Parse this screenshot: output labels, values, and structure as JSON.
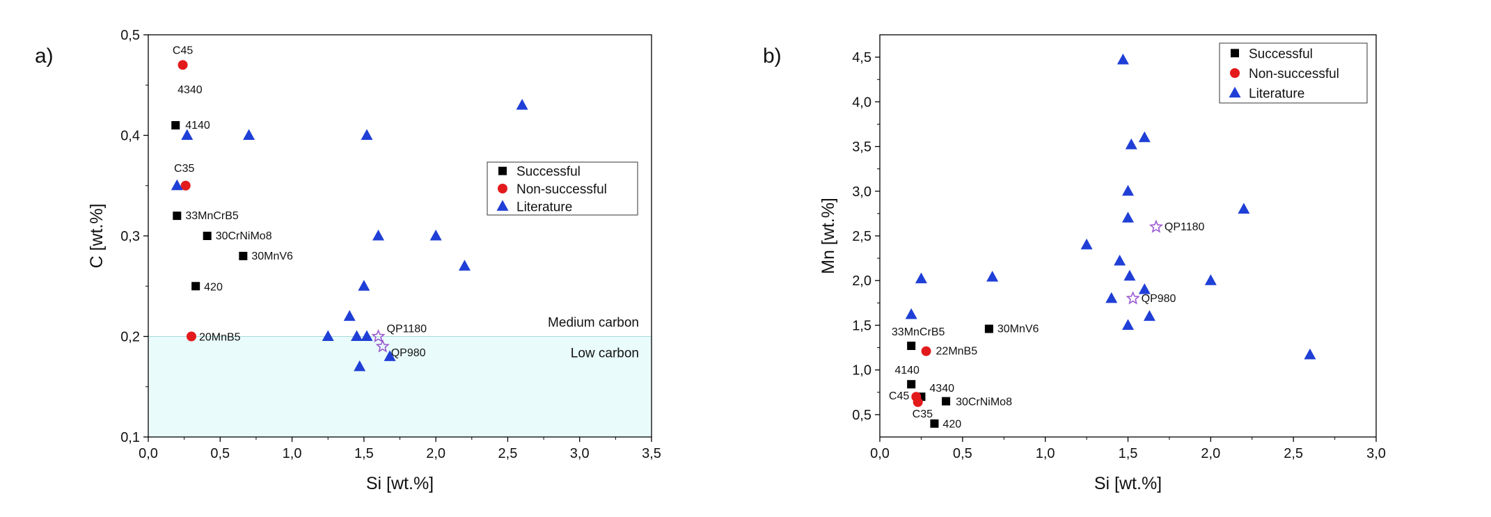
{
  "figure": {
    "legend": {
      "successful": "Successful",
      "non_successful": "Non-successful",
      "literature": "Literature"
    },
    "colors": {
      "successful": "#000000",
      "non_successful": "#e31a1c",
      "literature": "#1f3fd6",
      "qp": "#9b59d0",
      "low_carbon_region": "#e9fbfb"
    }
  },
  "chart_data": [
    {
      "type": "scatter",
      "panel_label": "a)",
      "xlabel": "Si [wt.%]",
      "ylabel": "C [wt.%]",
      "xlim": [
        0.0,
        3.5
      ],
      "ylim": [
        0.1,
        0.5
      ],
      "xticks": [
        0.0,
        0.5,
        1.0,
        1.5,
        2.0,
        2.5,
        3.0,
        3.5
      ],
      "xtick_labels": [
        "0,0",
        "0,5",
        "1,0",
        "1,5",
        "2,0",
        "2,5",
        "3,0",
        "3,5"
      ],
      "yticks": [
        0.1,
        0.2,
        0.3,
        0.4,
        0.5
      ],
      "ytick_labels": [
        "0,1",
        "0,2",
        "0,3",
        "0,4",
        "0,5"
      ],
      "legend_position": "center-right",
      "region": {
        "name": "Low carbon",
        "y_from": 0.1,
        "y_to": 0.2,
        "label_low": "Low carbon",
        "label_high": "Medium carbon"
      },
      "series": [
        {
          "name": "Successful",
          "marker": "square",
          "points": [
            {
              "x": 0.19,
              "y": 0.41,
              "label": "4140"
            },
            {
              "x": 0.2,
              "y": 0.32,
              "label": "33MnCrB5"
            },
            {
              "x": 0.41,
              "y": 0.3,
              "label": "30CrNiMo8"
            },
            {
              "x": 0.66,
              "y": 0.28,
              "label": "30MnV6"
            },
            {
              "x": 0.33,
              "y": 0.25,
              "label": "420"
            }
          ]
        },
        {
          "name": "Non-successful",
          "marker": "circle",
          "points": [
            {
              "x": 0.24,
              "y": 0.47,
              "label": "C45"
            },
            {
              "x": 0.26,
              "y": 0.35,
              "label": "C35"
            },
            {
              "x": 0.3,
              "y": 0.2,
              "label": "20MnB5"
            }
          ]
        },
        {
          "name": "Literature",
          "marker": "triangle",
          "points": [
            {
              "x": 0.27,
              "y": 0.4
            },
            {
              "x": 0.2,
              "y": 0.35
            },
            {
              "x": 0.7,
              "y": 0.4
            },
            {
              "x": 1.52,
              "y": 0.4
            },
            {
              "x": 2.6,
              "y": 0.43
            },
            {
              "x": 1.6,
              "y": 0.3
            },
            {
              "x": 2.0,
              "y": 0.3
            },
            {
              "x": 2.2,
              "y": 0.27
            },
            {
              "x": 1.5,
              "y": 0.25
            },
            {
              "x": 1.4,
              "y": 0.22
            },
            {
              "x": 1.25,
              "y": 0.2
            },
            {
              "x": 1.45,
              "y": 0.2
            },
            {
              "x": 1.52,
              "y": 0.2
            },
            {
              "x": 1.47,
              "y": 0.17
            },
            {
              "x": 1.68,
              "y": 0.18
            }
          ]
        },
        {
          "name": "QP",
          "marker": "star",
          "points": [
            {
              "x": 1.6,
              "y": 0.2,
              "label": "QP1180"
            },
            {
              "x": 1.63,
              "y": 0.19,
              "label": "QP980"
            }
          ]
        }
      ],
      "annotations": [
        "4340"
      ]
    },
    {
      "type": "scatter",
      "panel_label": "b)",
      "xlabel": "Si [wt.%]",
      "ylabel": "Mn [wt.%]",
      "xlim": [
        0.0,
        3.0
      ],
      "ylim": [
        0.25,
        4.75
      ],
      "xticks": [
        0.0,
        0.5,
        1.0,
        1.5,
        2.0,
        2.5,
        3.0
      ],
      "xtick_labels": [
        "0,0",
        "0,5",
        "1,0",
        "1,5",
        "2,0",
        "2,5",
        "3,0"
      ],
      "yticks": [
        0.5,
        1.0,
        1.5,
        2.0,
        2.5,
        3.0,
        3.5,
        4.0,
        4.5
      ],
      "ytick_labels": [
        "0,5",
        "1,0",
        "1,5",
        "2,0",
        "2,5",
        "3,0",
        "3,5",
        "4,0",
        "4,5"
      ],
      "legend_position": "top-right",
      "series": [
        {
          "name": "Successful",
          "marker": "square",
          "points": [
            {
              "x": 0.19,
              "y": 1.27,
              "label": "33MnCrB5"
            },
            {
              "x": 0.66,
              "y": 1.46,
              "label": "30MnV6"
            },
            {
              "x": 0.19,
              "y": 0.84,
              "label": "4140"
            },
            {
              "x": 0.25,
              "y": 0.7,
              "label": "4340"
            },
            {
              "x": 0.4,
              "y": 0.65,
              "label": "30CrNiMo8"
            },
            {
              "x": 0.33,
              "y": 0.4,
              "label": "420"
            }
          ]
        },
        {
          "name": "Non-successful",
          "marker": "circle",
          "points": [
            {
              "x": 0.28,
              "y": 1.21,
              "label": "22MnB5"
            },
            {
              "x": 0.22,
              "y": 0.7,
              "label": "C45"
            },
            {
              "x": 0.23,
              "y": 0.64,
              "label": "C35"
            }
          ]
        },
        {
          "name": "Literature",
          "marker": "triangle",
          "points": [
            {
              "x": 1.47,
              "y": 4.47
            },
            {
              "x": 1.6,
              "y": 3.6
            },
            {
              "x": 1.52,
              "y": 3.52
            },
            {
              "x": 1.5,
              "y": 3.0
            },
            {
              "x": 2.2,
              "y": 2.8
            },
            {
              "x": 1.5,
              "y": 2.7
            },
            {
              "x": 1.25,
              "y": 2.4
            },
            {
              "x": 1.45,
              "y": 2.22
            },
            {
              "x": 1.51,
              "y": 2.05
            },
            {
              "x": 0.68,
              "y": 2.04
            },
            {
              "x": 0.25,
              "y": 2.02
            },
            {
              "x": 2.0,
              "y": 2.0
            },
            {
              "x": 1.6,
              "y": 1.9
            },
            {
              "x": 1.4,
              "y": 1.8
            },
            {
              "x": 0.19,
              "y": 1.62
            },
            {
              "x": 1.63,
              "y": 1.6
            },
            {
              "x": 1.5,
              "y": 1.5
            },
            {
              "x": 2.6,
              "y": 1.17
            }
          ]
        },
        {
          "name": "QP",
          "marker": "star",
          "points": [
            {
              "x": 1.67,
              "y": 2.6,
              "label": "QP1180"
            },
            {
              "x": 1.53,
              "y": 1.8,
              "label": "QP980"
            }
          ]
        }
      ]
    }
  ]
}
